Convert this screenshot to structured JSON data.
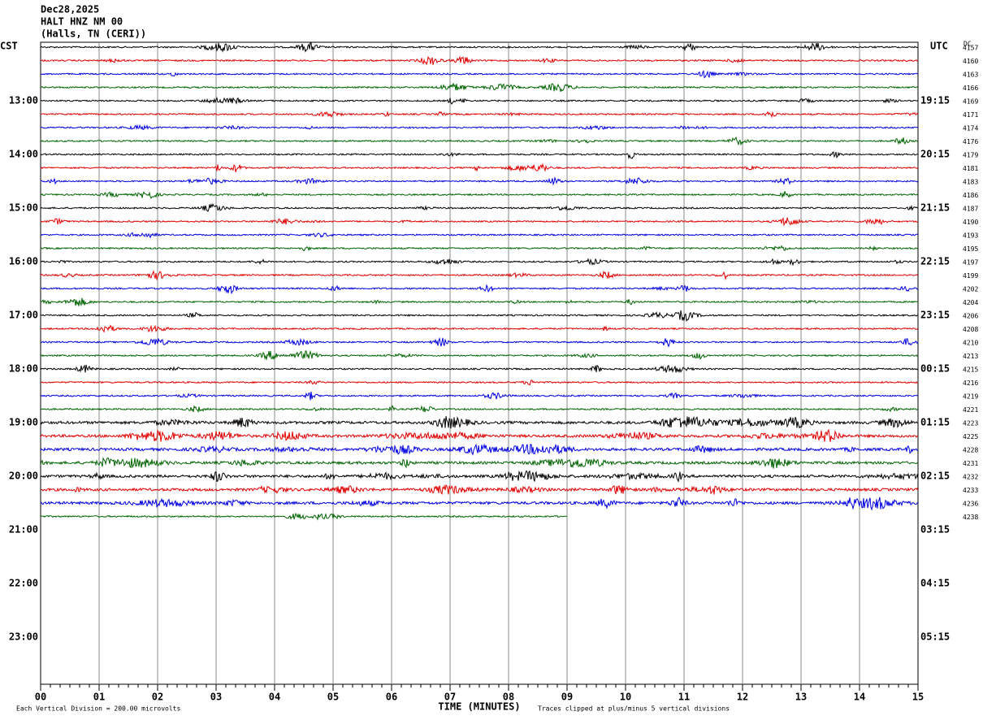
{
  "header": {
    "date": "Dec28,2025",
    "station": "HALT HNZ NM 00",
    "location": "(Halls, TN (CERI))"
  },
  "left_axis": {
    "title": "CST",
    "labels": [
      "13:00",
      "14:00",
      "15:00",
      "16:00",
      "17:00",
      "18:00",
      "19:00",
      "20:00",
      "21:00",
      "22:00",
      "23:00"
    ]
  },
  "right_axis": {
    "title": "UTC",
    "labels": [
      "19:15",
      "20:15",
      "21:15",
      "22:15",
      "23:15",
      "00:15",
      "01:15",
      "02:15",
      "03:15",
      "04:15",
      "05:15"
    ]
  },
  "dc": {
    "title": "DC",
    "values": [
      4157,
      4160,
      4163,
      4166,
      4169,
      4171,
      4174,
      4176,
      4179,
      4181,
      4183,
      4186,
      4187,
      4190,
      4193,
      4195,
      4197,
      4199,
      4202,
      4204,
      4206,
      4208,
      4210,
      4213,
      4215,
      4216,
      4219,
      4221,
      4223,
      4225,
      4228,
      4231,
      4232,
      4233,
      4236,
      4238
    ]
  },
  "x_axis": {
    "title": "TIME (MINUTES)",
    "labels": [
      "00",
      "01",
      "02",
      "03",
      "04",
      "05",
      "06",
      "07",
      "08",
      "09",
      "10",
      "11",
      "12",
      "13",
      "14",
      "15"
    ]
  },
  "footer": {
    "scale": "Each Vertical Division =  200.00 microvolts",
    "clip": "Traces clipped at plus/minus 5 vertical divisions"
  }
}
